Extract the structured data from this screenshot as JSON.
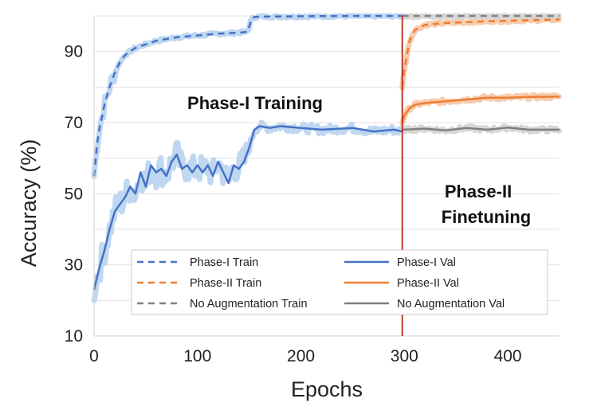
{
  "chart_data": {
    "type": "line",
    "xlabel": "Epochs",
    "ylabel": "Accuracy (%)",
    "xlim": [
      0,
      450
    ],
    "ylim": [
      10,
      100
    ],
    "xticks": [
      0,
      100,
      200,
      300,
      400
    ],
    "yticks": [
      10,
      30,
      50,
      70,
      90
    ],
    "grid": "horizontal",
    "vline": {
      "x": 298,
      "color": "#c0392b"
    },
    "annotations": [
      {
        "text": "Phase-I Training",
        "x": 155,
        "y": 87
      },
      {
        "text": "Phase-II",
        "x": 380,
        "y": 53
      },
      {
        "text": "Finetuning",
        "x": 380,
        "y": 47
      }
    ],
    "legend": {
      "placement": "bottom-center"
    },
    "series": [
      {
        "name": "Phase-I Train",
        "style": "dashed",
        "color": "#4472c4",
        "band_color": "#b9d3ef",
        "x": [
          0,
          3,
          5,
          8,
          10,
          15,
          20,
          25,
          30,
          40,
          50,
          60,
          80,
          100,
          120,
          140,
          148,
          150,
          152,
          155,
          160,
          200,
          250,
          298
        ],
        "values": [
          55,
          64,
          68,
          72,
          75,
          80,
          84,
          87,
          89,
          91,
          92,
          93,
          94,
          94.5,
          95,
          95.3,
          95.5,
          97,
          99,
          99.7,
          99.8,
          99.9,
          100,
          100
        ]
      },
      {
        "name": "Phase-I Val",
        "style": "solid",
        "color": "#4472c4",
        "band_color": "#b9d3ef",
        "x": [
          0,
          5,
          10,
          15,
          20,
          25,
          30,
          35,
          40,
          45,
          50,
          55,
          60,
          65,
          70,
          75,
          80,
          85,
          90,
          95,
          100,
          105,
          110,
          115,
          120,
          125,
          130,
          135,
          140,
          145,
          150,
          155,
          160,
          170,
          180,
          200,
          220,
          250,
          270,
          290,
          298
        ],
        "values": [
          23,
          29,
          34,
          40,
          45,
          47,
          49,
          52,
          50,
          56,
          52,
          58,
          56,
          57,
          55,
          59,
          61,
          57,
          58,
          56,
          58,
          56,
          58,
          55,
          59,
          56,
          53,
          58,
          57,
          59,
          63,
          68,
          69,
          68.5,
          69,
          68.5,
          68,
          68.5,
          67.5,
          68,
          67.5
        ]
      },
      {
        "name": "Phase-II Train",
        "style": "dashed",
        "color": "#ed7d31",
        "band_color": "#f7c6a5",
        "x": [
          298,
          300,
          305,
          310,
          320,
          340,
          380,
          420,
          450
        ],
        "values": [
          80,
          85,
          93,
          96,
          97.5,
          98,
          98.5,
          98.8,
          99
        ]
      },
      {
        "name": "Phase-II Val",
        "style": "solid",
        "color": "#ed7d31",
        "band_color": "#f7c6a5",
        "x": [
          298,
          300,
          305,
          310,
          320,
          340,
          360,
          380,
          400,
          420,
          450
        ],
        "values": [
          70,
          72,
          74,
          75,
          75.5,
          76,
          76.5,
          77,
          77,
          77.2,
          77.3
        ]
      },
      {
        "name": "No Augmentation Train",
        "style": "dashed",
        "color": "#808080",
        "band_color": "#d3d3d3",
        "x": [
          298,
          450
        ],
        "values": [
          100,
          100
        ]
      },
      {
        "name": "No Augmentation Val",
        "style": "solid",
        "color": "#808080",
        "band_color": "#d3d3d3",
        "x": [
          298,
          320,
          340,
          360,
          380,
          400,
          420,
          450
        ],
        "values": [
          68,
          68.3,
          67.8,
          68.5,
          68,
          68.6,
          68,
          68
        ]
      }
    ]
  }
}
